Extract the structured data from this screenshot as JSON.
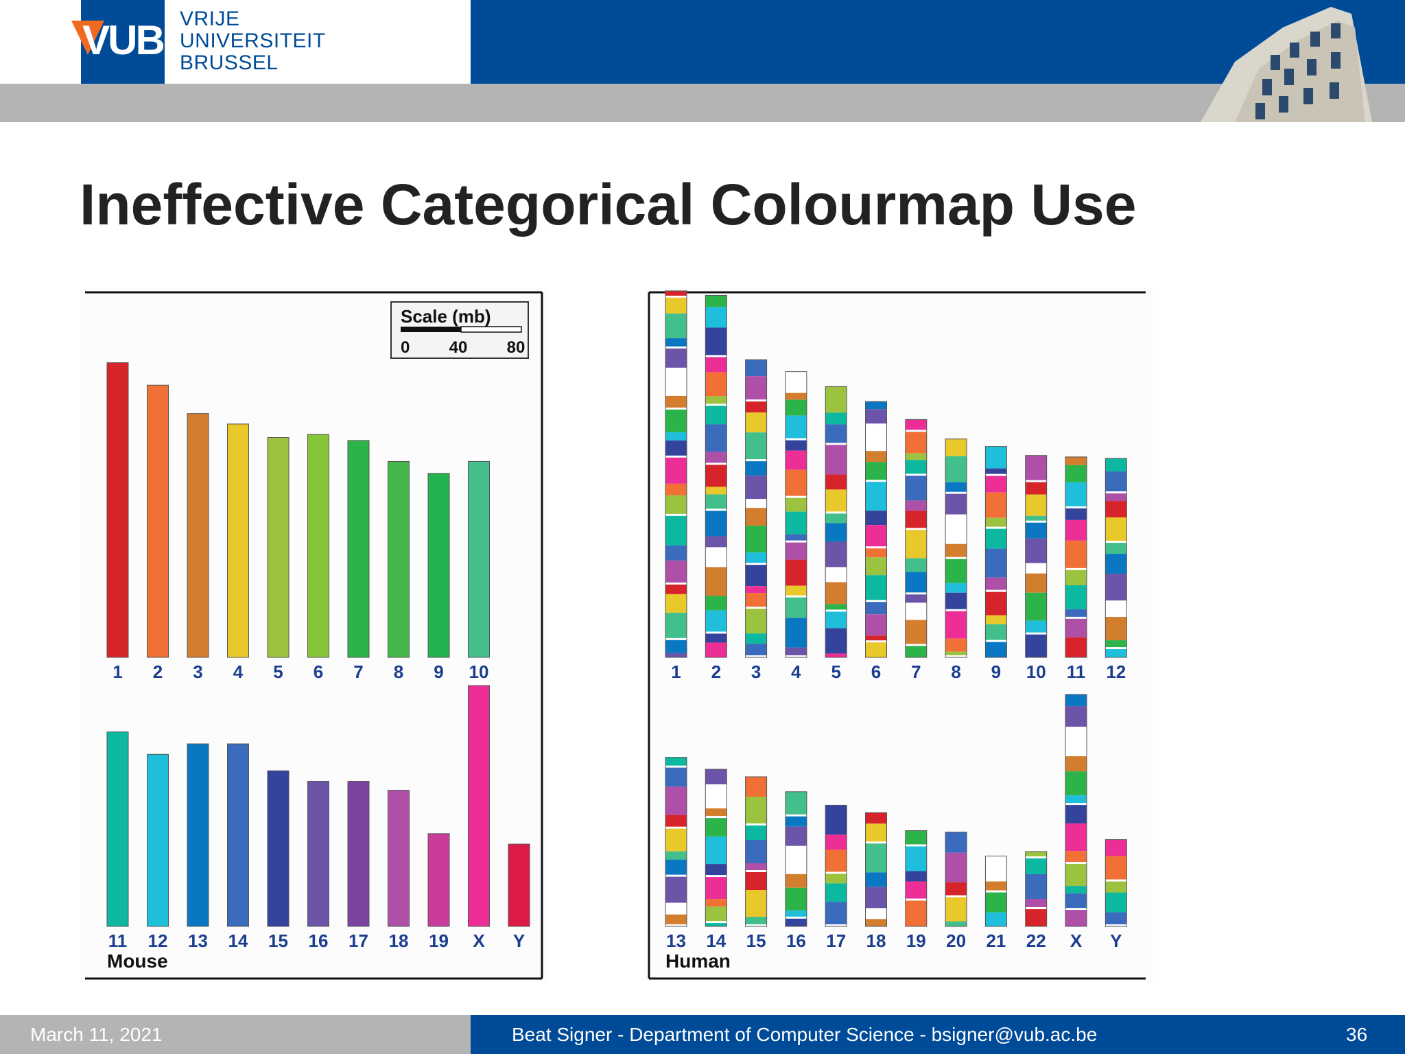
{
  "header": {
    "logo_text": "VUB",
    "university_lines": [
      "VRIJE",
      "UNIVERSITEIT",
      "BRUSSEL"
    ]
  },
  "slide": {
    "title": "Ineffective Categorical Colourmap Use"
  },
  "footer": {
    "date": "March 11, 2021",
    "author": "Beat Signer - Department of Computer Science - bsigner@vub.ac.be",
    "page": "36"
  },
  "colors": {
    "vub_blue": "#004b98",
    "vub_orange": "#f26a22",
    "bar_gray": "#b4b4b4",
    "label_blue": "#1a3d8f"
  },
  "chart_data": [
    {
      "type": "bar",
      "panel_label": "Mouse",
      "scale_box": {
        "title": "Scale (mb)",
        "ticks": [
          "0",
          "40",
          "80"
        ]
      },
      "unit": "mb",
      "rows": [
        {
          "categories": [
            "1",
            "2",
            "3",
            "4",
            "5",
            "6",
            "7",
            "8",
            "9",
            "10"
          ],
          "values": [
            197,
            182,
            163,
            156,
            147,
            149,
            145,
            131,
            123,
            131
          ],
          "colors": [
            "#d7242b",
            "#f07035",
            "#d27e2e",
            "#e8c82a",
            "#9cc33f",
            "#86c43a",
            "#2cb34a",
            "#44b649",
            "#23b24e",
            "#43bf8c"
          ]
        },
        {
          "categories": [
            "11",
            "12",
            "13",
            "14",
            "15",
            "16",
            "17",
            "18",
            "19",
            "X",
            "Y"
          ],
          "values": [
            130,
            115,
            122,
            122,
            104,
            97,
            97,
            91,
            62,
            161,
            55
          ],
          "colors": [
            "#0cb8a0",
            "#1fbfdc",
            "#0a77c2",
            "#3b6bbd",
            "#34449c",
            "#6c55a8",
            "#7d43a0",
            "#ae4fa8",
            "#c93c9c",
            "#ed2e96",
            "#dc1b48"
          ]
        }
      ]
    },
    {
      "type": "bar",
      "panel_label": "Human",
      "unit": "mb",
      "rows": [
        {
          "categories": [
            "1",
            "2",
            "3",
            "4",
            "5",
            "6",
            "7",
            "8",
            "9",
            "10",
            "11",
            "12"
          ],
          "values": [
            245,
            242,
            199,
            191,
            181,
            171,
            159,
            146,
            141,
            135,
            134,
            133
          ]
        },
        {
          "categories": [
            "13",
            "14",
            "15",
            "16",
            "17",
            "18",
            "19",
            "20",
            "21",
            "22",
            "X",
            "Y"
          ],
          "values": [
            113,
            105,
            100,
            90,
            81,
            76,
            64,
            63,
            47,
            50,
            155,
            58
          ]
        }
      ]
    }
  ]
}
